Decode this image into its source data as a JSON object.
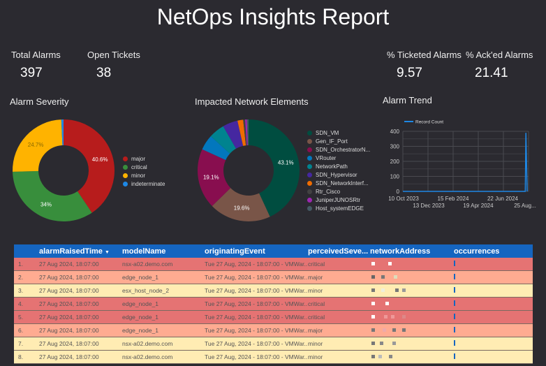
{
  "title": "NetOps Insights Report",
  "kpis": [
    {
      "label": "Total Alarms",
      "value": "397"
    },
    {
      "label": "Open Tickets",
      "value": "38"
    },
    {
      "label": "% Ticketed Alarms",
      "value": "9.57"
    },
    {
      "label": "% Ack'ed Alarms",
      "value": "21.41"
    }
  ],
  "chart_data": [
    {
      "type": "pie",
      "title": "Alarm Severity",
      "donut": true,
      "labels": [
        "major",
        "critical",
        "minor",
        "indeterminate"
      ],
      "values": [
        40.6,
        34,
        24.7,
        0.7
      ],
      "data_labels": [
        "40.6%",
        "34%",
        "24.7%",
        ""
      ],
      "colors": [
        "#b71c1c",
        "#388e3c",
        "#ffb300",
        "#1e88e5"
      ]
    },
    {
      "type": "pie",
      "title": "Impacted Network Elements",
      "donut": true,
      "labels": [
        "SDN_VM",
        "Gen_IF_Port",
        "SDN_OrchestratorN...",
        "VRouter",
        "NetworkPath",
        "SDN_Hypervisor",
        "SDN_NetworkInterf...",
        "Rtr_Cisco",
        "JuniperJUNOSRtr",
        "Host_systemEDGE"
      ],
      "values": [
        43.1,
        19.6,
        19.1,
        4.9,
        5.0,
        4.8,
        1.8,
        0.6,
        0.6,
        0.5
      ],
      "data_labels": [
        "43.1%",
        "19.6%",
        "19.1%",
        "",
        "",
        "",
        "",
        "",
        "",
        ""
      ],
      "colors": [
        "#004d40",
        "#795548",
        "#880e4f",
        "#0277bd",
        "#00838f",
        "#4527a0",
        "#ef6c00",
        "#424242",
        "#9c27b0",
        "#455a64"
      ]
    },
    {
      "type": "line",
      "title": "Alarm Trend",
      "legend": "Record Count",
      "legend_position": "top-left",
      "x_ticks": [
        "10 Oct 2023",
        "13 Dec 2023",
        "15 Feb 2024",
        "19 Apr 2024",
        "22 Jun 2024",
        "25 Aug..."
      ],
      "y_ticks": [
        "0",
        "100",
        "200",
        "300",
        "400"
      ],
      "ylim": [
        0,
        400
      ],
      "series": [
        {
          "name": "Record Count",
          "x_frac": [
            0,
            0.985,
            0.99,
            1
          ],
          "values": [
            0,
            0,
            390,
            0
          ]
        }
      ],
      "color": "#1e88e5",
      "grid": true
    }
  ],
  "table": {
    "headers": [
      "alarmRaisedTime",
      "modelName",
      "originatingEvent",
      "perceivedSeve...",
      "networkAddress",
      "occurrences"
    ],
    "sort_icon": "▼",
    "rows": [
      {
        "n": "1.",
        "time": "27 Aug 2024, 18:07:00",
        "model": "nsx-a02.demo.com",
        "event": "Tue 27 Aug, 2024 - 18:07:00 - VMWar...",
        "sev": "critical"
      },
      {
        "n": "2.",
        "time": "27 Aug 2024, 18:07:00",
        "model": "edge_node_1",
        "event": "Tue 27 Aug, 2024 - 18:07:00 - VMWar...",
        "sev": "major"
      },
      {
        "n": "3.",
        "time": "27 Aug 2024, 18:07:00",
        "model": "esx_host_node_2",
        "event": "Tue 27 Aug, 2024 - 18:07:00 - VMWar...",
        "sev": "minor"
      },
      {
        "n": "4.",
        "time": "27 Aug 2024, 18:07:00",
        "model": "edge_node_1",
        "event": "Tue 27 Aug, 2024 - 18:07:00 - VMWar...",
        "sev": "critical"
      },
      {
        "n": "5.",
        "time": "27 Aug 2024, 18:07:00",
        "model": "edge_node_1",
        "event": "Tue 27 Aug, 2024 - 18:07:00 - VMWar...",
        "sev": "critical"
      },
      {
        "n": "6.",
        "time": "27 Aug 2024, 18:07:00",
        "model": "edge_node_1",
        "event": "Tue 27 Aug, 2024 - 18:07:00 - VMWar...",
        "sev": "major"
      },
      {
        "n": "7.",
        "time": "27 Aug 2024, 18:07:00",
        "model": "nsx-a02.demo.com",
        "event": "Tue 27 Aug, 2024 - 18:07:00 - VMWar...",
        "sev": "minor"
      },
      {
        "n": "8.",
        "time": "27 Aug 2024, 18:07:00",
        "model": "nsx-a02.demo.com",
        "event": "Tue 27 Aug, 2024 - 18:07:00 - VMWar...",
        "sev": "minor"
      }
    ],
    "row_colors": {
      "critical": "#e57373",
      "major": "#ffab91",
      "minor": "#ffecb3"
    }
  }
}
